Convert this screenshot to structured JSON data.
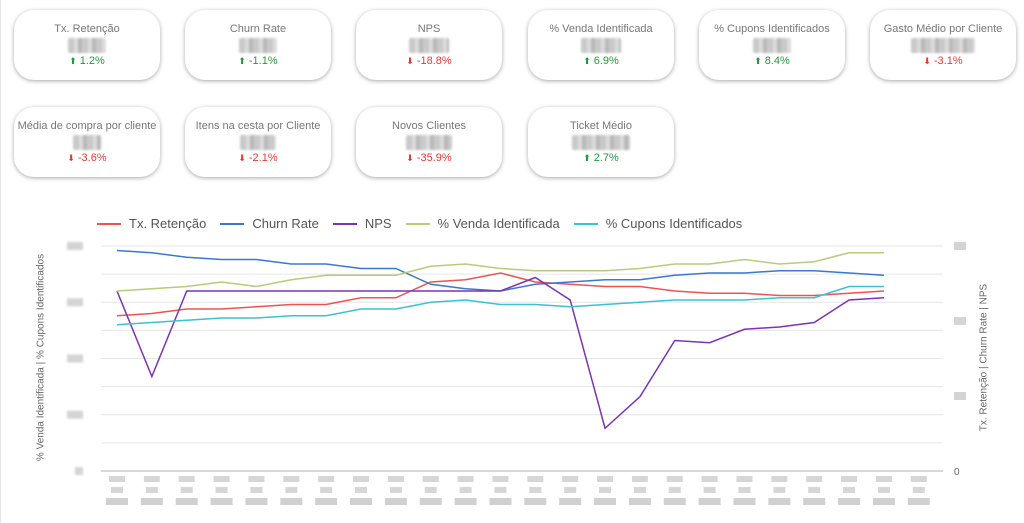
{
  "cards": [
    {
      "title": "Tx. Retenção",
      "delta": "1.2%",
      "trend": "up"
    },
    {
      "title": "Churn Rate",
      "delta": "-1.1%",
      "trend": "up"
    },
    {
      "title": "NPS",
      "delta": "-18.8%",
      "trend": "down"
    },
    {
      "title": "% Venda Identificada",
      "delta": "6.9%",
      "trend": "up"
    },
    {
      "title": "% Cupons Identificados",
      "delta": "8.4%",
      "trend": "up"
    },
    {
      "title": "Gasto Médio por Cliente",
      "delta": "-3.1%",
      "trend": "down"
    },
    {
      "title": "Média de compra por cliente",
      "delta": "-3.6%",
      "trend": "down"
    },
    {
      "title": "Itens na cesta por Cliente",
      "delta": "-2.1%",
      "trend": "down"
    },
    {
      "title": "Novos Clientes",
      "delta": "-35.9%",
      "trend": "down"
    },
    {
      "title": "Ticket Médio",
      "delta": "2.7%",
      "trend": "up"
    }
  ],
  "colors": {
    "up": "#1e9a3a",
    "down": "#e53935"
  },
  "chart_data": {
    "type": "line",
    "y_left_title": "% Venda Identificada | % Cupons Identificados",
    "y_right_title": "Tx. Retenção | Churn Rate | NPS",
    "y_right_zero_label": "0",
    "ylim": [
      0,
      100
    ],
    "grid": true,
    "legend": "top-left",
    "x_count": 24,
    "series": [
      {
        "name": "Tx. Retenção",
        "color": "#ef5350",
        "values": [
          69,
          70,
          72,
          72,
          73,
          74,
          74,
          77,
          77,
          84,
          85,
          88,
          84,
          83,
          82,
          82,
          80,
          79,
          79,
          78,
          78,
          79,
          80
        ]
      },
      {
        "name": "Churn Rate",
        "color": "#3a78d0",
        "values": [
          98,
          97,
          95,
          94,
          94,
          92,
          92,
          90,
          90,
          83,
          81,
          80,
          83,
          84,
          85,
          85,
          87,
          88,
          88,
          89,
          89,
          88,
          87
        ]
      },
      {
        "name": "NPS",
        "color": "#7b34b4",
        "values": [
          80,
          42,
          80,
          80,
          80,
          80,
          80,
          80,
          80,
          80,
          80,
          80,
          86,
          76,
          19,
          33,
          58,
          57,
          63,
          64,
          66,
          76,
          77
        ]
      },
      {
        "name": "% Venda Identificada",
        "color": "#b5cc78",
        "values": [
          80,
          81,
          82,
          84,
          82,
          85,
          87,
          87,
          87,
          91,
          92,
          90,
          89,
          89,
          89,
          90,
          92,
          92,
          94,
          92,
          93,
          97,
          97
        ]
      },
      {
        "name": "% Cupons Identificados",
        "color": "#3cc0d6",
        "values": [
          65,
          66,
          67,
          68,
          68,
          69,
          69,
          72,
          72,
          75,
          76,
          74,
          74,
          73,
          74,
          75,
          76,
          76,
          76,
          77,
          77,
          82,
          82
        ]
      }
    ]
  }
}
